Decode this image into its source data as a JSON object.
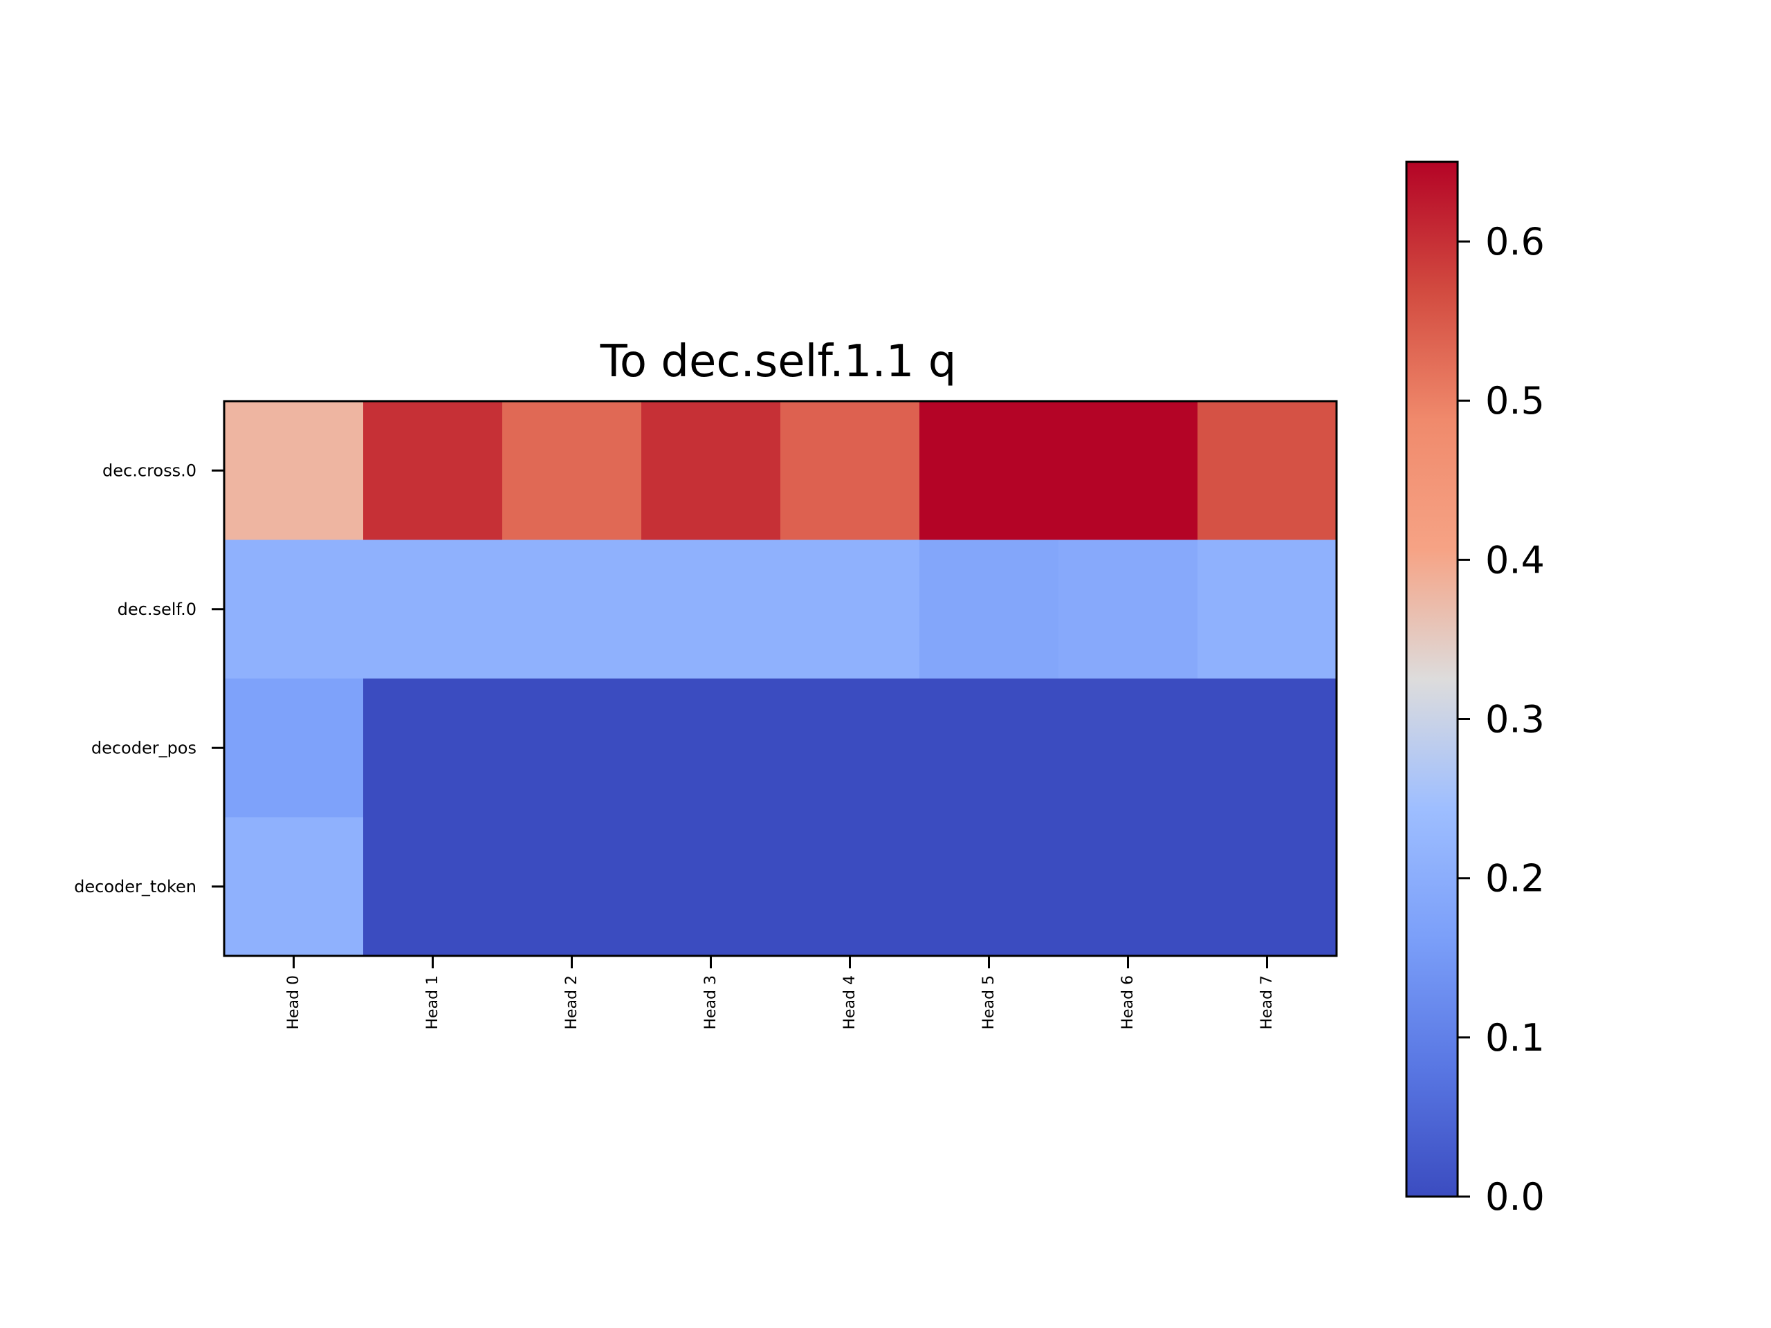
{
  "chart_data": {
    "type": "heatmap",
    "title": "To dec.self.1.1 q",
    "xlabel": "",
    "ylabel": "",
    "x_categories": [
      "Head 0",
      "Head 1",
      "Head 2",
      "Head 3",
      "Head 4",
      "Head 5",
      "Head 6",
      "Head 7"
    ],
    "y_categories": [
      "dec.cross.0",
      "dec.self.0",
      "decoder_pos",
      "decoder_token"
    ],
    "values": [
      [
        0.38,
        0.6,
        0.53,
        0.6,
        0.54,
        0.65,
        0.65,
        0.56
      ],
      [
        0.21,
        0.21,
        0.21,
        0.21,
        0.21,
        0.18,
        0.19,
        0.21
      ],
      [
        0.17,
        0.0,
        0.0,
        0.0,
        0.0,
        0.0,
        0.0,
        0.0
      ],
      [
        0.21,
        0.0,
        0.0,
        0.0,
        0.0,
        0.0,
        0.0,
        0.0
      ]
    ],
    "colormap": "coolwarm",
    "colorbar": {
      "range": [
        0.0,
        0.65
      ],
      "ticks": [
        0.0,
        0.1,
        0.2,
        0.3,
        0.4,
        0.5,
        0.6
      ],
      "tick_labels": [
        "0.0",
        "0.1",
        "0.2",
        "0.3",
        "0.4",
        "0.5",
        "0.6"
      ]
    },
    "grid": false
  }
}
